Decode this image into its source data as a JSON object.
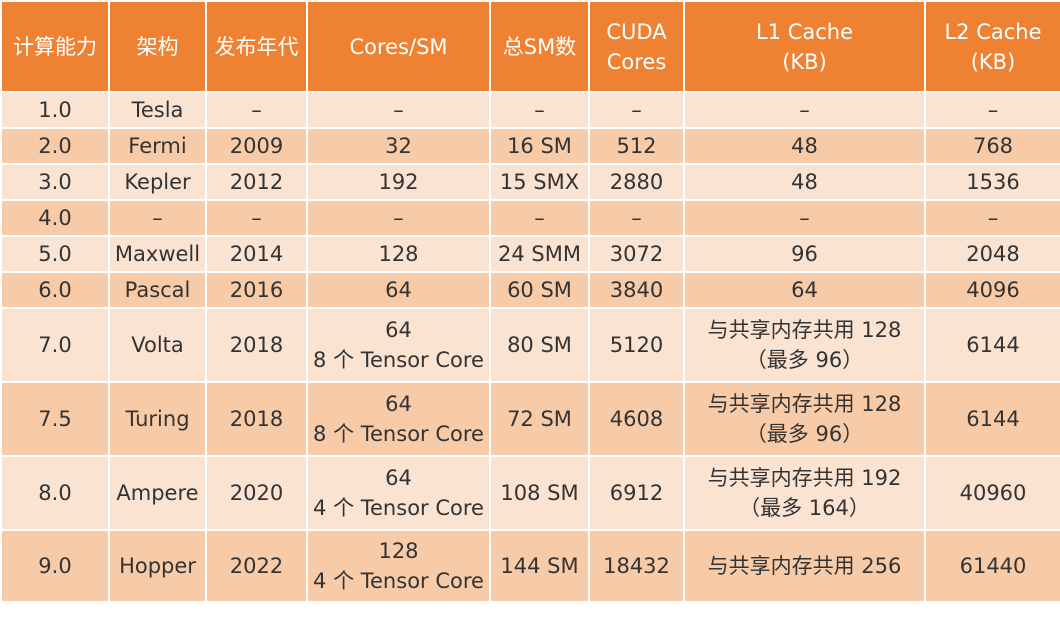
{
  "headers": {
    "compute": "计算能力",
    "arch": "架构",
    "year": "发布年代",
    "cores_sm": "Cores/SM",
    "total_sm": "总SM数",
    "cuda_1": "CUDA",
    "cuda_2": "Cores",
    "l1_1": "L1 Cache",
    "l1_2": "(KB)",
    "l2_1": "L2 Cache",
    "l2_2": "(KB)"
  },
  "rows": [
    {
      "compute": "1.0",
      "arch": "Tesla",
      "year": "–",
      "cores": [
        "–"
      ],
      "sm": "–",
      "cuda": "–",
      "l1": [
        "–"
      ],
      "l2": "–"
    },
    {
      "compute": "2.0",
      "arch": "Fermi",
      "year": "2009",
      "cores": [
        "32"
      ],
      "sm": "16 SM",
      "cuda": "512",
      "l1": [
        "48"
      ],
      "l2": "768"
    },
    {
      "compute": "3.0",
      "arch": "Kepler",
      "year": "2012",
      "cores": [
        "192"
      ],
      "sm": "15 SMX",
      "cuda": "2880",
      "l1": [
        "48"
      ],
      "l2": "1536"
    },
    {
      "compute": "4.0",
      "arch": "–",
      "year": "–",
      "cores": [
        "–"
      ],
      "sm": "–",
      "cuda": "–",
      "l1": [
        "–"
      ],
      "l2": "–"
    },
    {
      "compute": "5.0",
      "arch": "Maxwell",
      "year": "2014",
      "cores": [
        "128"
      ],
      "sm": "24 SMM",
      "cuda": "3072",
      "l1": [
        "96"
      ],
      "l2": "2048"
    },
    {
      "compute": "6.0",
      "arch": "Pascal",
      "year": "2016",
      "cores": [
        "64"
      ],
      "sm": "60 SM",
      "cuda": "3840",
      "l1": [
        "64"
      ],
      "l2": "4096"
    },
    {
      "compute": "7.0",
      "arch": "Volta",
      "year": "2018",
      "cores": [
        "64",
        "8 个 Tensor Core"
      ],
      "sm": "80 SM",
      "cuda": "5120",
      "l1": [
        "与共享内存共用 128",
        "（最多 96）"
      ],
      "l2": "6144"
    },
    {
      "compute": "7.5",
      "arch": "Turing",
      "year": "2018",
      "cores": [
        "64",
        "8 个 Tensor Core"
      ],
      "sm": "72 SM",
      "cuda": "4608",
      "l1": [
        "与共享内存共用 128",
        "（最多 96）"
      ],
      "l2": "6144"
    },
    {
      "compute": "8.0",
      "arch": "Ampere",
      "year": "2020",
      "cores": [
        "64",
        "4 个 Tensor Core"
      ],
      "sm": "108 SM",
      "cuda": "6912",
      "l1": [
        "与共享内存共用 192",
        "（最多 164）"
      ],
      "l2": "40960"
    },
    {
      "compute": "9.0",
      "arch": "Hopper",
      "year": "2022",
      "cores": [
        "128",
        "4 个 Tensor Core"
      ],
      "sm": "144 SM",
      "cuda": "18432",
      "l1": [
        "与共享内存共用 256"
      ],
      "l2": "61440"
    }
  ]
}
